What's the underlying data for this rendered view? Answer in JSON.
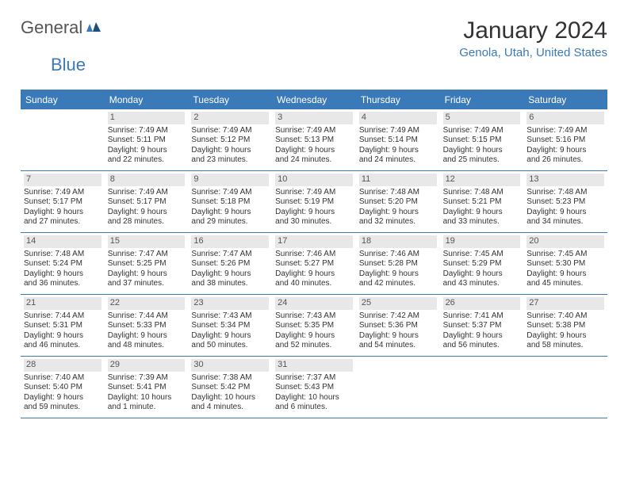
{
  "brand": {
    "text1": "General",
    "text2": "Blue"
  },
  "title": "January 2024",
  "location": "Genola, Utah, United States",
  "colors": {
    "accent": "#3b7ab8",
    "header_bg": "#3b7ab8",
    "daynum_bg": "#e8e8e8",
    "text": "#333333",
    "bg": "#ffffff"
  },
  "days_of_week": [
    "Sunday",
    "Monday",
    "Tuesday",
    "Wednesday",
    "Thursday",
    "Friday",
    "Saturday"
  ],
  "first_weekday_offset": 1,
  "days": [
    {
      "n": "1",
      "sunrise": "Sunrise: 7:49 AM",
      "sunset": "Sunset: 5:11 PM",
      "d1": "Daylight: 9 hours",
      "d2": "and 22 minutes."
    },
    {
      "n": "2",
      "sunrise": "Sunrise: 7:49 AM",
      "sunset": "Sunset: 5:12 PM",
      "d1": "Daylight: 9 hours",
      "d2": "and 23 minutes."
    },
    {
      "n": "3",
      "sunrise": "Sunrise: 7:49 AM",
      "sunset": "Sunset: 5:13 PM",
      "d1": "Daylight: 9 hours",
      "d2": "and 24 minutes."
    },
    {
      "n": "4",
      "sunrise": "Sunrise: 7:49 AM",
      "sunset": "Sunset: 5:14 PM",
      "d1": "Daylight: 9 hours",
      "d2": "and 24 minutes."
    },
    {
      "n": "5",
      "sunrise": "Sunrise: 7:49 AM",
      "sunset": "Sunset: 5:15 PM",
      "d1": "Daylight: 9 hours",
      "d2": "and 25 minutes."
    },
    {
      "n": "6",
      "sunrise": "Sunrise: 7:49 AM",
      "sunset": "Sunset: 5:16 PM",
      "d1": "Daylight: 9 hours",
      "d2": "and 26 minutes."
    },
    {
      "n": "7",
      "sunrise": "Sunrise: 7:49 AM",
      "sunset": "Sunset: 5:17 PM",
      "d1": "Daylight: 9 hours",
      "d2": "and 27 minutes."
    },
    {
      "n": "8",
      "sunrise": "Sunrise: 7:49 AM",
      "sunset": "Sunset: 5:17 PM",
      "d1": "Daylight: 9 hours",
      "d2": "and 28 minutes."
    },
    {
      "n": "9",
      "sunrise": "Sunrise: 7:49 AM",
      "sunset": "Sunset: 5:18 PM",
      "d1": "Daylight: 9 hours",
      "d2": "and 29 minutes."
    },
    {
      "n": "10",
      "sunrise": "Sunrise: 7:49 AM",
      "sunset": "Sunset: 5:19 PM",
      "d1": "Daylight: 9 hours",
      "d2": "and 30 minutes."
    },
    {
      "n": "11",
      "sunrise": "Sunrise: 7:48 AM",
      "sunset": "Sunset: 5:20 PM",
      "d1": "Daylight: 9 hours",
      "d2": "and 32 minutes."
    },
    {
      "n": "12",
      "sunrise": "Sunrise: 7:48 AM",
      "sunset": "Sunset: 5:21 PM",
      "d1": "Daylight: 9 hours",
      "d2": "and 33 minutes."
    },
    {
      "n": "13",
      "sunrise": "Sunrise: 7:48 AM",
      "sunset": "Sunset: 5:23 PM",
      "d1": "Daylight: 9 hours",
      "d2": "and 34 minutes."
    },
    {
      "n": "14",
      "sunrise": "Sunrise: 7:48 AM",
      "sunset": "Sunset: 5:24 PM",
      "d1": "Daylight: 9 hours",
      "d2": "and 36 minutes."
    },
    {
      "n": "15",
      "sunrise": "Sunrise: 7:47 AM",
      "sunset": "Sunset: 5:25 PM",
      "d1": "Daylight: 9 hours",
      "d2": "and 37 minutes."
    },
    {
      "n": "16",
      "sunrise": "Sunrise: 7:47 AM",
      "sunset": "Sunset: 5:26 PM",
      "d1": "Daylight: 9 hours",
      "d2": "and 38 minutes."
    },
    {
      "n": "17",
      "sunrise": "Sunrise: 7:46 AM",
      "sunset": "Sunset: 5:27 PM",
      "d1": "Daylight: 9 hours",
      "d2": "and 40 minutes."
    },
    {
      "n": "18",
      "sunrise": "Sunrise: 7:46 AM",
      "sunset": "Sunset: 5:28 PM",
      "d1": "Daylight: 9 hours",
      "d2": "and 42 minutes."
    },
    {
      "n": "19",
      "sunrise": "Sunrise: 7:45 AM",
      "sunset": "Sunset: 5:29 PM",
      "d1": "Daylight: 9 hours",
      "d2": "and 43 minutes."
    },
    {
      "n": "20",
      "sunrise": "Sunrise: 7:45 AM",
      "sunset": "Sunset: 5:30 PM",
      "d1": "Daylight: 9 hours",
      "d2": "and 45 minutes."
    },
    {
      "n": "21",
      "sunrise": "Sunrise: 7:44 AM",
      "sunset": "Sunset: 5:31 PM",
      "d1": "Daylight: 9 hours",
      "d2": "and 46 minutes."
    },
    {
      "n": "22",
      "sunrise": "Sunrise: 7:44 AM",
      "sunset": "Sunset: 5:33 PM",
      "d1": "Daylight: 9 hours",
      "d2": "and 48 minutes."
    },
    {
      "n": "23",
      "sunrise": "Sunrise: 7:43 AM",
      "sunset": "Sunset: 5:34 PM",
      "d1": "Daylight: 9 hours",
      "d2": "and 50 minutes."
    },
    {
      "n": "24",
      "sunrise": "Sunrise: 7:43 AM",
      "sunset": "Sunset: 5:35 PM",
      "d1": "Daylight: 9 hours",
      "d2": "and 52 minutes."
    },
    {
      "n": "25",
      "sunrise": "Sunrise: 7:42 AM",
      "sunset": "Sunset: 5:36 PM",
      "d1": "Daylight: 9 hours",
      "d2": "and 54 minutes."
    },
    {
      "n": "26",
      "sunrise": "Sunrise: 7:41 AM",
      "sunset": "Sunset: 5:37 PM",
      "d1": "Daylight: 9 hours",
      "d2": "and 56 minutes."
    },
    {
      "n": "27",
      "sunrise": "Sunrise: 7:40 AM",
      "sunset": "Sunset: 5:38 PM",
      "d1": "Daylight: 9 hours",
      "d2": "and 58 minutes."
    },
    {
      "n": "28",
      "sunrise": "Sunrise: 7:40 AM",
      "sunset": "Sunset: 5:40 PM",
      "d1": "Daylight: 9 hours",
      "d2": "and 59 minutes."
    },
    {
      "n": "29",
      "sunrise": "Sunrise: 7:39 AM",
      "sunset": "Sunset: 5:41 PM",
      "d1": "Daylight: 10 hours",
      "d2": "and 1 minute."
    },
    {
      "n": "30",
      "sunrise": "Sunrise: 7:38 AM",
      "sunset": "Sunset: 5:42 PM",
      "d1": "Daylight: 10 hours",
      "d2": "and 4 minutes."
    },
    {
      "n": "31",
      "sunrise": "Sunrise: 7:37 AM",
      "sunset": "Sunset: 5:43 PM",
      "d1": "Daylight: 10 hours",
      "d2": "and 6 minutes."
    }
  ]
}
